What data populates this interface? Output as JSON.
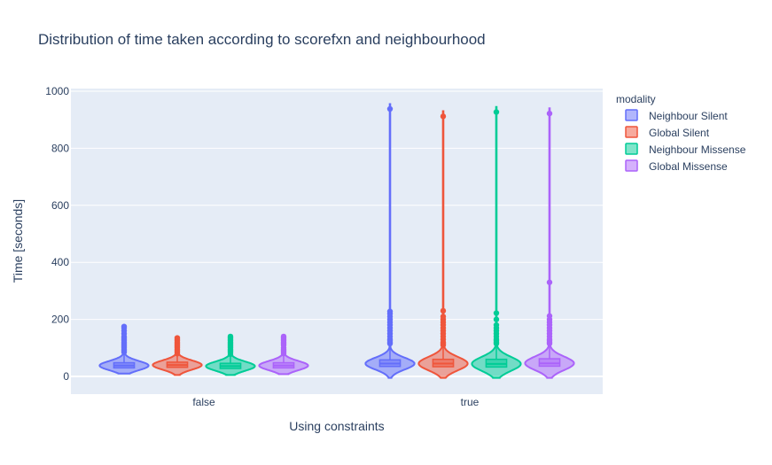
{
  "chart_data": {
    "type": "violin",
    "title": "Distribution of time taken according to scorefxn and neighbourhood",
    "xlabel": "Using constraints",
    "ylabel": "Time [seconds]",
    "categories": [
      "false",
      "true"
    ],
    "y_ticks": [
      0,
      200,
      400,
      600,
      800,
      1000
    ],
    "ylim": [
      -60,
      1000
    ],
    "grid": true,
    "legend_title": "modality",
    "legend_position": "top-right",
    "series": [
      {
        "name": "Neighbour Silent",
        "color": "#636efa",
        "groups": [
          {
            "category": "false",
            "min": 10,
            "q1": 30,
            "median": 38,
            "q3": 48,
            "max": 90,
            "upper_fence": 80,
            "outliers": [
              85,
              90,
              95,
              100,
              105,
              110,
              115,
              120,
              125,
              130,
              135,
              140,
              150,
              160,
              170,
              175
            ]
          },
          {
            "category": "true",
            "min": -5,
            "q1": 35,
            "median": 45,
            "q3": 58,
            "max": 955,
            "upper_fence": 110,
            "outliers": [
              115,
              120,
              125,
              130,
              140,
              150,
              160,
              170,
              180,
              190,
              200,
              210,
              220,
              228,
              938
            ]
          }
        ]
      },
      {
        "name": "Global Silent",
        "color": "#ef553b",
        "groups": [
          {
            "category": "false",
            "min": 5,
            "q1": 32,
            "median": 40,
            "q3": 50,
            "max": 85,
            "upper_fence": 75,
            "outliers": [
              80,
              85,
              90,
              95,
              100,
              105,
              110,
              115,
              120,
              125,
              130,
              135
            ]
          },
          {
            "category": "true",
            "min": -5,
            "q1": 34,
            "median": 45,
            "q3": 60,
            "max": 930,
            "upper_fence": 105,
            "outliers": [
              110,
              115,
              120,
              130,
              140,
              150,
              160,
              170,
              180,
              190,
              200,
              210,
              230,
              912
            ]
          }
        ]
      },
      {
        "name": "Neighbour Missense",
        "color": "#00cc96",
        "groups": [
          {
            "category": "false",
            "min": 5,
            "q1": 28,
            "median": 36,
            "q3": 46,
            "max": 80,
            "upper_fence": 72,
            "outliers": [
              78,
              85,
              90,
              95,
              100,
              105,
              110,
              115,
              120,
              125,
              130,
              135,
              140
            ]
          },
          {
            "category": "true",
            "min": -5,
            "q1": 33,
            "median": 44,
            "q3": 60,
            "max": 945,
            "upper_fence": 110,
            "outliers": [
              115,
              120,
              125,
              130,
              140,
              150,
              160,
              170,
              180,
              200,
              222,
              927
            ]
          }
        ]
      },
      {
        "name": "Global Missense",
        "color": "#ab63fa",
        "groups": [
          {
            "category": "false",
            "min": 8,
            "q1": 30,
            "median": 38,
            "q3": 48,
            "max": 80,
            "upper_fence": 74,
            "outliers": [
              80,
              85,
              90,
              95,
              100,
              110,
              115,
              120,
              125,
              130,
              135,
              140
            ]
          },
          {
            "category": "true",
            "min": -5,
            "q1": 36,
            "median": 46,
            "q3": 62,
            "max": 940,
            "upper_fence": 110,
            "outliers": [
              115,
              120,
              125,
              130,
              140,
              150,
              160,
              170,
              180,
              190,
              200,
              212,
              330,
              922
            ]
          }
        ]
      }
    ]
  }
}
